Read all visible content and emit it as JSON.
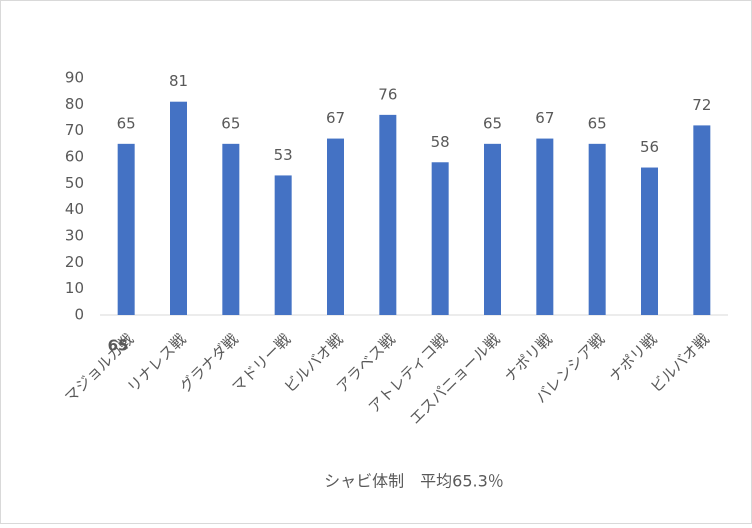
{
  "chart_data": {
    "type": "bar",
    "x_label": "シャビ体制　平均65.3％",
    "annotation": "65",
    "categories": [
      "マジョルカ戦",
      "リナレス戦",
      "グラナダ戦",
      "マドリー戦",
      "ビルバオ戦",
      "アラベス戦",
      "アトレティコ戦",
      "エスパニョール戦",
      "ナポリ戦",
      "バレンシア戦",
      "ナポリ戦",
      "ビルバオ戦"
    ],
    "values": [
      65,
      81,
      65,
      53,
      67,
      76,
      58,
      65,
      67,
      65,
      56,
      72
    ],
    "color": "#4472c4",
    "ylim": [
      0,
      90
    ],
    "yticks": [
      0,
      10,
      20,
      30,
      40,
      50,
      60,
      70,
      80,
      90
    ],
    "grid": false,
    "data_labels": true
  }
}
